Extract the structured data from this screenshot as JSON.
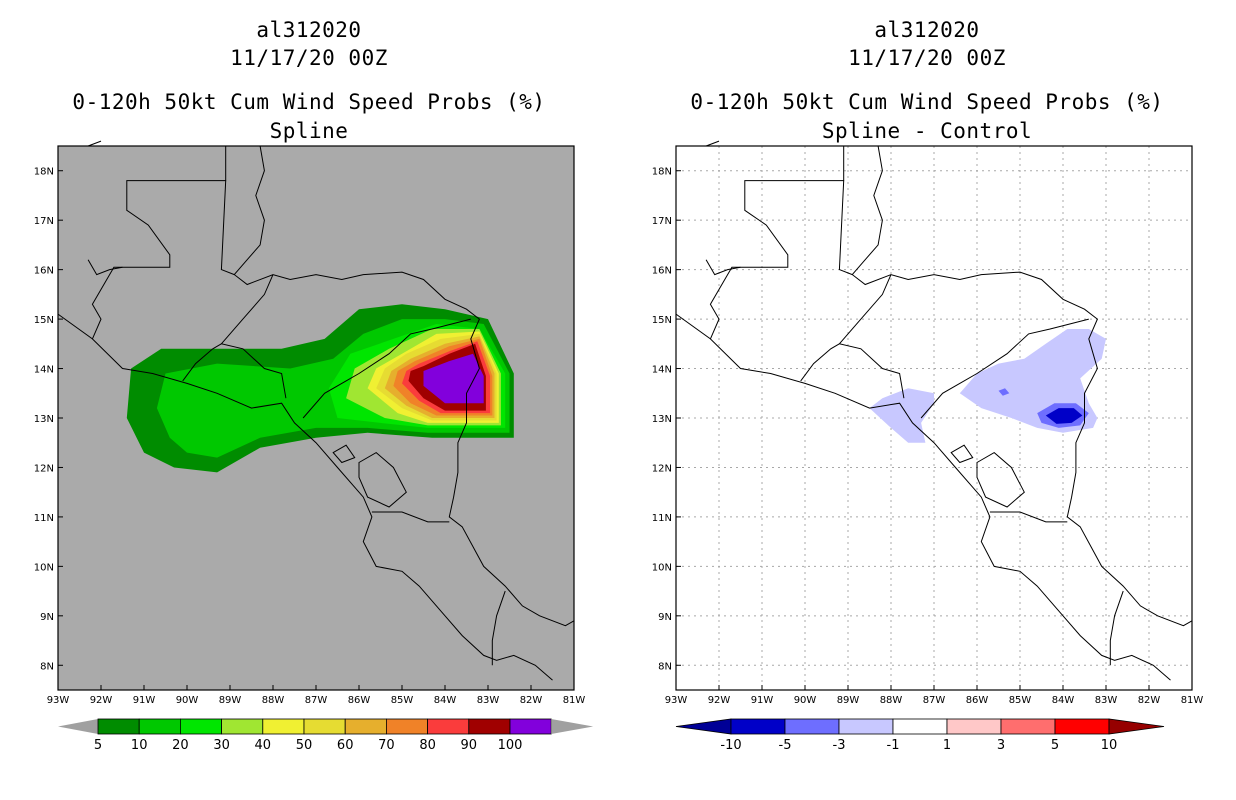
{
  "chart_data": [
    {
      "type": "heatmap",
      "title_lines": [
        "al312020",
        "11/17/20 00Z",
        "0-120h 50kt Cum Wind Speed Probs (%)",
        "Spline"
      ],
      "lon_ticks": [
        "93W",
        "92W",
        "91W",
        "90W",
        "89W",
        "88W",
        "87W",
        "86W",
        "85W",
        "84W",
        "83W",
        "82W",
        "81W"
      ],
      "lat_ticks": [
        "8N",
        "9N",
        "10N",
        "11N",
        "12N",
        "13N",
        "14N",
        "15N",
        "16N",
        "17N",
        "18N"
      ],
      "xlim": [
        -93,
        -81
      ],
      "ylim": [
        7.5,
        18.5
      ],
      "grid": false,
      "land_color": "#aaaaaa",
      "colorbar": {
        "labels": [
          "5",
          "10",
          "20",
          "30",
          "40",
          "50",
          "60",
          "70",
          "80",
          "90",
          "100"
        ],
        "colors": [
          "#008c00",
          "#00c800",
          "#00e600",
          "#a0e632",
          "#f0f032",
          "#e6dc32",
          "#e6af2d",
          "#f08228",
          "#fa3c3c",
          "#a00000",
          "#8200dc"
        ],
        "end_color": "#a0a0a0"
      },
      "contours": [
        {
          "level": 5,
          "color": "#008c00",
          "points": [
            [
              -90.3,
              12.0
            ],
            [
              -89.3,
              11.9
            ],
            [
              -88.3,
              12.4
            ],
            [
              -87.0,
              12.6
            ],
            [
              -85.8,
              12.7
            ],
            [
              -84.3,
              12.6
            ],
            [
              -82.4,
              12.6
            ],
            [
              -82.4,
              13.9
            ],
            [
              -83.0,
              15.0
            ],
            [
              -84.0,
              15.2
            ],
            [
              -85.0,
              15.3
            ],
            [
              -86.0,
              15.2
            ],
            [
              -86.8,
              14.6
            ],
            [
              -87.8,
              14.4
            ],
            [
              -89.3,
              14.4
            ],
            [
              -90.6,
              14.4
            ],
            [
              -91.3,
              14.0
            ],
            [
              -91.4,
              13.0
            ],
            [
              -91.0,
              12.3
            ]
          ]
        },
        {
          "level": 10,
          "color": "#00c800",
          "points": [
            [
              -90.0,
              12.3
            ],
            [
              -89.3,
              12.2
            ],
            [
              -88.3,
              12.6
            ],
            [
              -87.0,
              12.8
            ],
            [
              -85.8,
              12.8
            ],
            [
              -84.4,
              12.7
            ],
            [
              -82.5,
              12.7
            ],
            [
              -82.5,
              13.9
            ],
            [
              -83.1,
              14.9
            ],
            [
              -84.0,
              15.0
            ],
            [
              -85.0,
              15.0
            ],
            [
              -85.9,
              14.7
            ],
            [
              -86.6,
              14.2
            ],
            [
              -87.6,
              14.0
            ],
            [
              -89.3,
              14.1
            ],
            [
              -90.5,
              13.9
            ],
            [
              -90.7,
              13.2
            ],
            [
              -90.4,
              12.6
            ]
          ]
        },
        {
          "level": 20,
          "color": "#00e600",
          "points": [
            [
              -86.5,
              13.0
            ],
            [
              -85.5,
              12.9
            ],
            [
              -84.4,
              12.8
            ],
            [
              -82.6,
              12.8
            ],
            [
              -82.6,
              13.9
            ],
            [
              -83.2,
              14.8
            ],
            [
              -84.2,
              14.9
            ],
            [
              -85.2,
              14.6
            ],
            [
              -86.2,
              14.3
            ],
            [
              -86.7,
              13.6
            ]
          ]
        },
        {
          "level": 30,
          "color": "#a0e632",
          "points": [
            [
              -86.3,
              13.4
            ],
            [
              -85.4,
              13.0
            ],
            [
              -84.4,
              12.85
            ],
            [
              -82.7,
              12.85
            ],
            [
              -82.7,
              13.9
            ],
            [
              -83.2,
              14.8
            ],
            [
              -84.3,
              14.8
            ],
            [
              -85.3,
              14.4
            ],
            [
              -86.1,
              14.0
            ]
          ]
        },
        {
          "level": 40,
          "color": "#f0f032",
          "points": [
            [
              -85.8,
              13.6
            ],
            [
              -85.1,
              13.1
            ],
            [
              -84.4,
              12.9
            ],
            [
              -82.75,
              12.9
            ],
            [
              -82.75,
              13.9
            ],
            [
              -83.2,
              14.75
            ],
            [
              -84.2,
              14.7
            ],
            [
              -85.0,
              14.3
            ],
            [
              -85.6,
              14.0
            ]
          ]
        },
        {
          "level": 50,
          "color": "#e6dc32",
          "points": [
            [
              -85.6,
              13.6
            ],
            [
              -85.0,
              13.2
            ],
            [
              -84.3,
              12.95
            ],
            [
              -82.8,
              12.95
            ],
            [
              -82.8,
              13.9
            ],
            [
              -83.2,
              14.7
            ],
            [
              -84.1,
              14.6
            ],
            [
              -84.9,
              14.3
            ],
            [
              -85.4,
              14.0
            ]
          ]
        },
        {
          "level": 60,
          "color": "#e6af2d",
          "points": [
            [
              -85.4,
              13.6
            ],
            [
              -84.9,
              13.25
            ],
            [
              -84.3,
              13.0
            ],
            [
              -82.85,
              13.0
            ],
            [
              -82.85,
              13.9
            ],
            [
              -83.2,
              14.65
            ],
            [
              -84.0,
              14.5
            ],
            [
              -84.8,
              14.2
            ],
            [
              -85.25,
              13.95
            ]
          ]
        },
        {
          "level": 70,
          "color": "#f08228",
          "points": [
            [
              -85.2,
              13.65
            ],
            [
              -84.8,
              13.3
            ],
            [
              -84.2,
              13.05
            ],
            [
              -82.9,
              13.05
            ],
            [
              -82.9,
              13.85
            ],
            [
              -83.2,
              14.6
            ],
            [
              -83.9,
              14.45
            ],
            [
              -84.7,
              14.15
            ],
            [
              -85.1,
              13.95
            ]
          ]
        },
        {
          "level": 80,
          "color": "#fa3c3c",
          "points": [
            [
              -85.0,
              13.7
            ],
            [
              -84.6,
              13.35
            ],
            [
              -84.1,
              13.1
            ],
            [
              -82.95,
              13.1
            ],
            [
              -82.95,
              13.85
            ],
            [
              -83.25,
              14.55
            ],
            [
              -83.9,
              14.35
            ],
            [
              -84.6,
              14.1
            ],
            [
              -84.9,
              13.95
            ]
          ]
        },
        {
          "level": 90,
          "color": "#a00000",
          "points": [
            [
              -84.85,
              13.75
            ],
            [
              -84.5,
              13.4
            ],
            [
              -84.0,
              13.15
            ],
            [
              -83.05,
              13.15
            ],
            [
              -83.05,
              13.85
            ],
            [
              -83.3,
              14.5
            ],
            [
              -83.9,
              14.3
            ],
            [
              -84.5,
              14.05
            ],
            [
              -84.8,
              13.95
            ]
          ]
        },
        {
          "level": 100,
          "color": "#8200dc",
          "points": [
            [
              -84.5,
              13.65
            ],
            [
              -84.0,
              13.3
            ],
            [
              -83.1,
              13.3
            ],
            [
              -83.1,
              13.85
            ],
            [
              -83.35,
              14.3
            ],
            [
              -83.9,
              14.15
            ],
            [
              -84.5,
              13.95
            ]
          ]
        }
      ]
    },
    {
      "type": "heatmap",
      "title_lines": [
        "al312020",
        "11/17/20 00Z",
        "0-120h 50kt Cum Wind Speed Probs (%)",
        "Spline - Control"
      ],
      "lon_ticks": [
        "93W",
        "92W",
        "91W",
        "90W",
        "89W",
        "88W",
        "87W",
        "86W",
        "85W",
        "84W",
        "83W",
        "82W",
        "81W"
      ],
      "lat_ticks": [
        "8N",
        "9N",
        "10N",
        "11N",
        "12N",
        "13N",
        "14N",
        "15N",
        "16N",
        "17N",
        "18N"
      ],
      "xlim": [
        -93,
        -81
      ],
      "ylim": [
        7.5,
        18.5
      ],
      "grid": true,
      "land_color": "#ffffff",
      "colorbar": {
        "labels": [
          "-10",
          "-5",
          "-3",
          "-1",
          "1",
          "3",
          "5",
          "10"
        ],
        "colors": [
          "#0000c8",
          "#6e6eff",
          "#c8c8ff",
          "#ffffff",
          "#ffc8c8",
          "#ff6e6e",
          "#ff0000"
        ],
        "end_left_color": "#000096",
        "end_right_color": "#960000"
      },
      "contours": [
        {
          "level": -1,
          "color": "#c8c8ff",
          "points": [
            [
              -88.2,
              13.4
            ],
            [
              -87.6,
              13.6
            ],
            [
              -87.0,
              13.5
            ],
            [
              -87.0,
              13.3
            ],
            [
              -87.3,
              12.9
            ],
            [
              -87.2,
              12.5
            ],
            [
              -87.6,
              12.5
            ],
            [
              -88.0,
              12.8
            ],
            [
              -88.5,
              13.2
            ]
          ]
        },
        {
          "level": -1,
          "color": "#c8c8ff",
          "points": [
            [
              -86.4,
              13.5
            ],
            [
              -86.0,
              13.9
            ],
            [
              -85.5,
              14.1
            ],
            [
              -84.9,
              14.2
            ],
            [
              -84.4,
              14.5
            ],
            [
              -83.9,
              14.8
            ],
            [
              -83.4,
              14.8
            ],
            [
              -83.0,
              14.6
            ],
            [
              -83.1,
              14.2
            ],
            [
              -83.6,
              13.8
            ],
            [
              -83.4,
              13.3
            ],
            [
              -83.2,
              13.0
            ],
            [
              -83.3,
              12.8
            ],
            [
              -84.0,
              12.7
            ],
            [
              -84.6,
              12.8
            ],
            [
              -85.2,
              13.0
            ],
            [
              -85.9,
              13.2
            ]
          ]
        },
        {
          "level": -3,
          "color": "#6e6eff",
          "points": [
            [
              -84.6,
              13.1
            ],
            [
              -84.2,
              13.3
            ],
            [
              -83.7,
              13.3
            ],
            [
              -83.4,
              13.1
            ],
            [
              -83.6,
              12.85
            ],
            [
              -84.1,
              12.8
            ],
            [
              -84.5,
              12.9
            ]
          ]
        },
        {
          "level": -3,
          "color": "#6e6eff",
          "points": [
            [
              -85.5,
              13.55
            ],
            [
              -85.35,
              13.6
            ],
            [
              -85.25,
              13.5
            ],
            [
              -85.4,
              13.45
            ]
          ]
        },
        {
          "level": -5,
          "color": "#0000c8",
          "points": [
            [
              -84.4,
              13.05
            ],
            [
              -84.1,
              13.2
            ],
            [
              -83.75,
              13.2
            ],
            [
              -83.55,
              13.05
            ],
            [
              -83.8,
              12.9
            ],
            [
              -84.15,
              12.88
            ]
          ]
        }
      ]
    }
  ]
}
